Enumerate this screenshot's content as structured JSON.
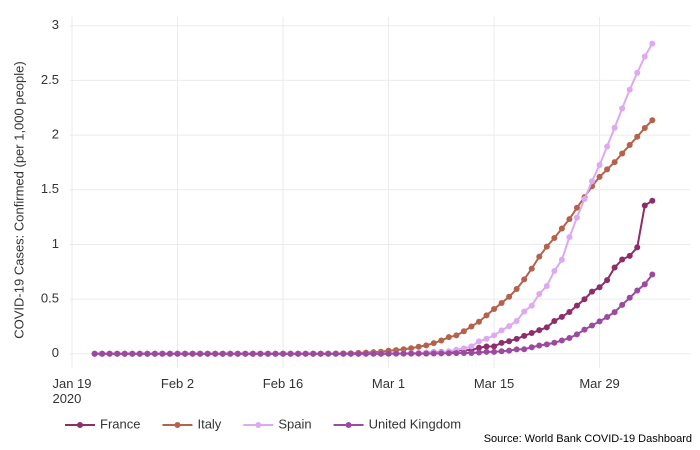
{
  "chart_data": {
    "type": "line",
    "y_label": "COVID-19 Cases: Confirmed (per 1,000 people)",
    "source": "Source: World Bank COVID-19 Dashboard",
    "x": [
      "2020-01-22",
      "2020-01-23",
      "2020-01-24",
      "2020-01-25",
      "2020-01-26",
      "2020-01-27",
      "2020-01-28",
      "2020-01-29",
      "2020-01-30",
      "2020-01-31",
      "2020-02-01",
      "2020-02-02",
      "2020-02-03",
      "2020-02-04",
      "2020-02-05",
      "2020-02-06",
      "2020-02-07",
      "2020-02-08",
      "2020-02-09",
      "2020-02-10",
      "2020-02-11",
      "2020-02-12",
      "2020-02-13",
      "2020-02-14",
      "2020-02-15",
      "2020-02-16",
      "2020-02-17",
      "2020-02-18",
      "2020-02-19",
      "2020-02-20",
      "2020-02-21",
      "2020-02-22",
      "2020-02-23",
      "2020-02-24",
      "2020-02-25",
      "2020-02-26",
      "2020-02-27",
      "2020-02-28",
      "2020-02-29",
      "2020-03-01",
      "2020-03-02",
      "2020-03-03",
      "2020-03-04",
      "2020-03-05",
      "2020-03-06",
      "2020-03-07",
      "2020-03-08",
      "2020-03-09",
      "2020-03-10",
      "2020-03-11",
      "2020-03-12",
      "2020-03-13",
      "2020-03-14",
      "2020-03-15",
      "2020-03-16",
      "2020-03-17",
      "2020-03-18",
      "2020-03-19",
      "2020-03-20",
      "2020-03-21",
      "2020-03-22",
      "2020-03-23",
      "2020-03-24",
      "2020-03-25",
      "2020-03-26",
      "2020-03-27",
      "2020-03-28",
      "2020-03-29",
      "2020-03-30",
      "2020-03-31",
      "2020-04-01",
      "2020-04-02",
      "2020-04-03",
      "2020-04-04",
      "2020-04-05"
    ],
    "series": [
      {
        "name": "France",
        "color": "#8e2d6b",
        "values": [
          0,
          0,
          0,
          0,
          0,
          0,
          0,
          0,
          0,
          0,
          0,
          0,
          0,
          0,
          0,
          0,
          0,
          0,
          0,
          0,
          0,
          0,
          0,
          0,
          0,
          0,
          0,
          0,
          0,
          0,
          0,
          0,
          0,
          0,
          0,
          0,
          0.001,
          0.001,
          0.001,
          0.002,
          0.003,
          0.003,
          0.004,
          0.006,
          0.01,
          0.014,
          0.017,
          0.018,
          0.027,
          0.034,
          0.034,
          0.055,
          0.067,
          0.068,
          0.1,
          0.115,
          0.136,
          0.164,
          0.19,
          0.216,
          0.242,
          0.3,
          0.338,
          0.382,
          0.441,
          0.499,
          0.569,
          0.608,
          0.674,
          0.789,
          0.862,
          0.895,
          0.973,
          1.356,
          1.4
        ]
      },
      {
        "name": "Italy",
        "color": "#b5624c",
        "values": [
          0,
          0,
          0,
          0,
          0,
          0,
          0,
          0,
          0,
          0,
          0,
          0,
          0,
          0,
          0,
          0,
          0,
          0,
          0,
          0,
          0,
          0,
          0,
          0,
          0,
          0,
          0,
          0,
          0,
          0,
          0,
          0.001,
          0.003,
          0.004,
          0.005,
          0.008,
          0.011,
          0.015,
          0.019,
          0.028,
          0.034,
          0.041,
          0.051,
          0.064,
          0.077,
          0.097,
          0.122,
          0.152,
          0.168,
          0.206,
          0.25,
          0.293,
          0.351,
          0.41,
          0.464,
          0.522,
          0.592,
          0.68,
          0.779,
          0.888,
          0.98,
          1.059,
          1.146,
          1.232,
          1.335,
          1.433,
          1.532,
          1.618,
          1.686,
          1.753,
          1.832,
          1.909,
          1.985,
          2.065,
          2.136
        ]
      },
      {
        "name": "Spain",
        "color": "#dda9f0",
        "values": [
          0,
          0,
          0,
          0,
          0,
          0,
          0,
          0,
          0,
          0,
          0,
          0,
          0,
          0,
          0,
          0,
          0,
          0,
          0,
          0,
          0,
          0,
          0,
          0,
          0,
          0,
          0,
          0,
          0,
          0,
          0,
          0,
          0,
          0,
          0,
          0,
          0,
          0.001,
          0.001,
          0.002,
          0.003,
          0.004,
          0.005,
          0.006,
          0.009,
          0.011,
          0.015,
          0.023,
          0.037,
          0.049,
          0.068,
          0.113,
          0.138,
          0.168,
          0.214,
          0.253,
          0.3,
          0.387,
          0.44,
          0.547,
          0.62,
          0.757,
          0.86,
          1.067,
          1.245,
          1.416,
          1.578,
          1.727,
          1.896,
          2.067,
          2.244,
          2.415,
          2.569,
          2.719,
          2.837
        ]
      },
      {
        "name": "United Kingdom",
        "color": "#9b4aa0",
        "values": [
          0,
          0,
          0,
          0,
          0,
          0,
          0,
          0,
          0,
          0,
          0,
          0,
          0,
          0,
          0,
          0,
          0,
          0,
          0,
          0,
          0,
          0,
          0,
          0,
          0,
          0,
          0,
          0,
          0,
          0,
          0,
          0,
          0,
          0,
          0,
          0,
          0,
          0,
          0,
          0.001,
          0.001,
          0.001,
          0.001,
          0.002,
          0.002,
          0.003,
          0.004,
          0.005,
          0.006,
          0.007,
          0.007,
          0.012,
          0.017,
          0.017,
          0.023,
          0.029,
          0.04,
          0.041,
          0.06,
          0.076,
          0.086,
          0.101,
          0.122,
          0.144,
          0.177,
          0.221,
          0.259,
          0.296,
          0.336,
          0.381,
          0.447,
          0.512,
          0.579,
          0.636,
          0.725
        ]
      }
    ],
    "xlim": [
      "2020-01-19",
      "2020-04-10"
    ],
    "xticks": [
      {
        "value": "2020-01-19",
        "label": "Jan 19\n2020"
      },
      {
        "value": "2020-02-02",
        "label": "Feb 2"
      },
      {
        "value": "2020-02-16",
        "label": "Feb 16"
      },
      {
        "value": "2020-03-01",
        "label": "Mar 1"
      },
      {
        "value": "2020-03-15",
        "label": "Mar 15"
      },
      {
        "value": "2020-03-29",
        "label": "Mar 29"
      }
    ],
    "ylim": [
      -0.13,
      3.08
    ],
    "yticks": [
      0,
      0.5,
      1,
      1.5,
      2,
      2.5,
      3
    ],
    "grid": true,
    "legend": "bottom"
  }
}
